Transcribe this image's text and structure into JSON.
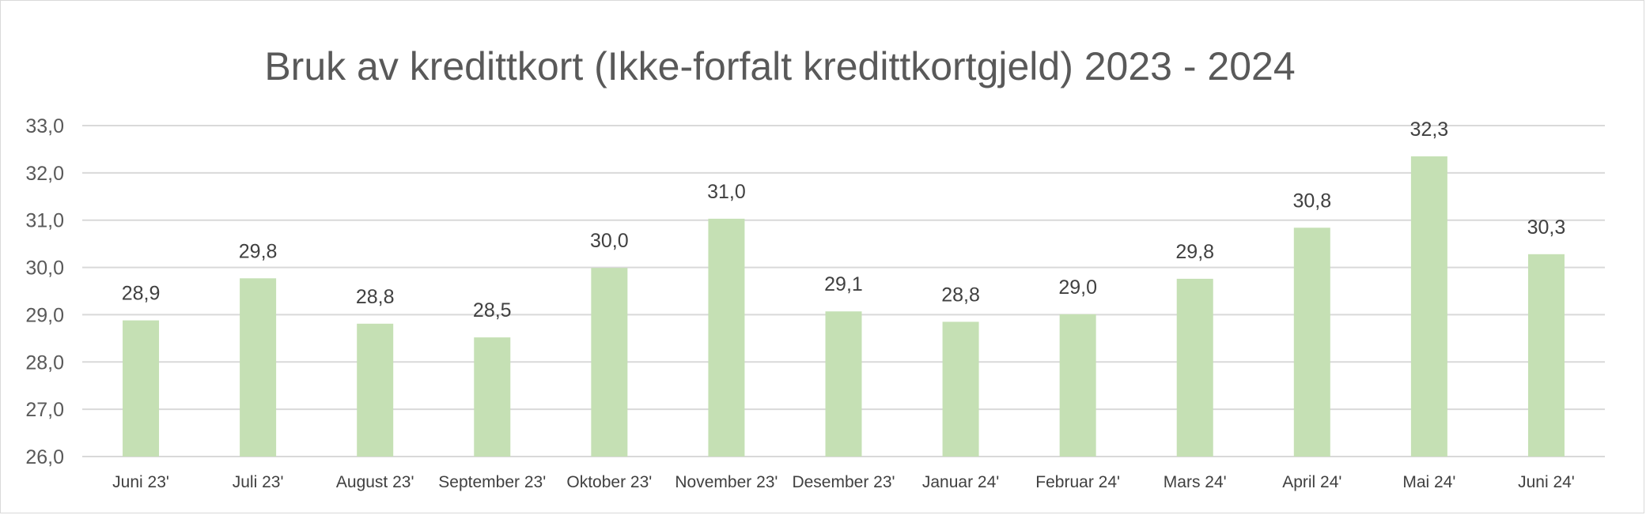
{
  "chart_data": {
    "type": "bar",
    "title": "Bruk av kredittkort (Ikke-forfalt kredittkortgjeld) 2023 - 2024",
    "xlabel": "",
    "ylabel": "",
    "categories": [
      "Juni 23'",
      "Juli 23'",
      "August 23'",
      "September 23'",
      "Oktober 23'",
      "November 23'",
      "Desember 23'",
      "Januar 24'",
      "Februar 24'",
      "Mars 24'",
      "April 24'",
      "Mai 24'",
      "Juni 24'"
    ],
    "values": [
      28.88,
      29.77,
      28.81,
      28.52,
      29.99,
      31.03,
      29.07,
      28.85,
      29.01,
      29.76,
      30.84,
      32.35,
      30.28
    ],
    "data_labels": [
      "28,9",
      "29,8",
      "28,8",
      "28,5",
      "30,0",
      "31,0",
      "29,1",
      "28,8",
      "29,0",
      "29,8",
      "30,8",
      "32,3",
      "30,3"
    ],
    "ylim": [
      26,
      33
    ],
    "yticks": [
      "26,0",
      "27,0",
      "28,0",
      "29,0",
      "30,0",
      "31,0",
      "32,0",
      "33,0"
    ],
    "grid": true,
    "legend": "none",
    "colors": {
      "bar": "#c5e0b4",
      "grid": "#d9d9d9",
      "title": "#595959",
      "text": "#404040"
    }
  }
}
